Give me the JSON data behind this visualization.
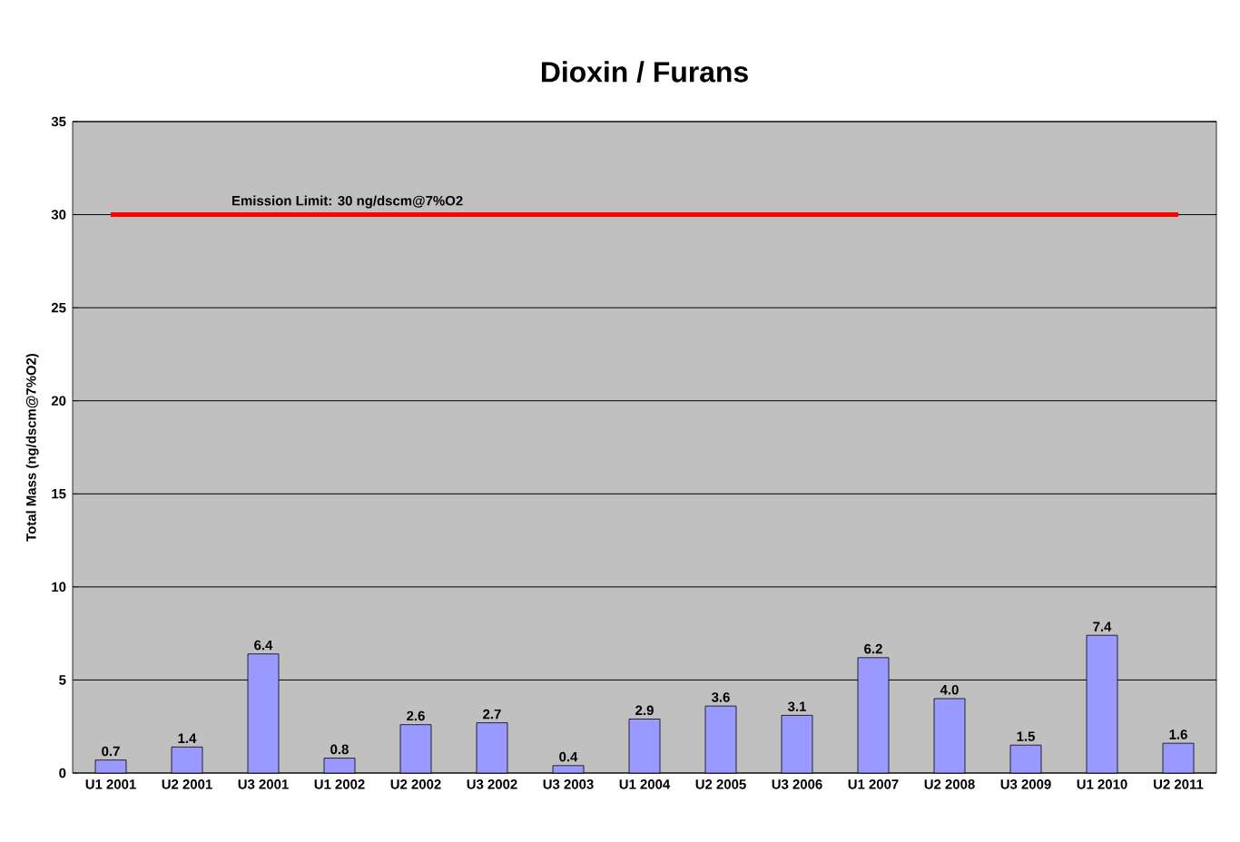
{
  "chart_data": {
    "type": "bar",
    "title": "Dioxin / Furans",
    "ylabel": "Total Mass (ng/dscm@7%O2)",
    "categories": [
      "U1 2001",
      "U2 2001",
      "U3 2001",
      "U1 2002",
      "U2 2002",
      "U3 2002",
      "U3 2003",
      "U1 2004",
      "U2 2005",
      "U3 2006",
      "U1 2007",
      "U2 2008",
      "U3 2009",
      "U1 2010",
      "U2 2011"
    ],
    "values": [
      0.7,
      1.4,
      6.4,
      0.8,
      2.6,
      2.7,
      0.4,
      2.9,
      3.6,
      3.1,
      6.2,
      4.0,
      1.5,
      7.4,
      1.6
    ],
    "value_labels": [
      "0.7",
      "1.4",
      "6.4",
      "0.8",
      "2.6",
      "2.7",
      "0.4",
      "2.9",
      "3.6",
      "3.1",
      "6.2",
      "4.0",
      "1.5",
      "7.4",
      "1.6"
    ],
    "color": "#9999ff",
    "ylim": [
      0,
      35
    ],
    "yticks": [
      0,
      5,
      10,
      15,
      20,
      25,
      30,
      35
    ],
    "grid": "y",
    "ref_lines": [
      {
        "axis": "y",
        "value": 30,
        "label": "Emission  Limit: 30 ng/dscm@7%O2",
        "color": "#ff0000"
      }
    ]
  }
}
